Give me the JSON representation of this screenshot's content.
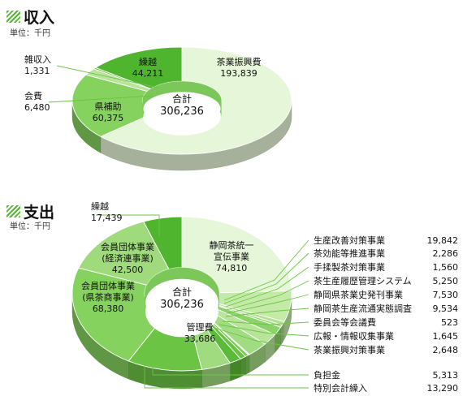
{
  "income": {
    "title": "収入",
    "unit": "単位：千円"
  },
  "expense": {
    "title": "支出",
    "unit": "単位：千円"
  },
  "chart_data": [
    {
      "type": "pie",
      "title": "収入",
      "unit": "千円",
      "center_label": "合計",
      "center_value": "306,236",
      "slices": [
        {
          "label": "茶業振興費",
          "value": 193839,
          "display": "193,839",
          "color": "#e6f6d8"
        },
        {
          "label": "県補助",
          "value": 60375,
          "display": "60,375",
          "color": "#86d25e"
        },
        {
          "label": "会費",
          "value": 6480,
          "display": "6,480",
          "color": "#b9e59b"
        },
        {
          "label": "雑収入",
          "value": 1331,
          "display": "1,331",
          "color": "#6cc444"
        },
        {
          "label": "繰越",
          "value": 44211,
          "display": "44,211",
          "color": "#4fb52e"
        }
      ]
    },
    {
      "type": "pie",
      "title": "支出",
      "unit": "千円",
      "center_label": "合計",
      "center_value": "306,236",
      "slices": [
        {
          "label": "静岡茶統一\n宣伝事業",
          "value": 74810,
          "display": "74,810",
          "color": "#e6f6d8"
        },
        {
          "label": "生産改善対策事業",
          "value": 19842,
          "display": "19,842",
          "color": "#c4eaa8"
        },
        {
          "label": "茶効能等推進事業",
          "value": 2286,
          "display": "2,286",
          "color": "#b1e292"
        },
        {
          "label": "手揉製茶対策事業",
          "value": 1560,
          "display": "1,560",
          "color": "#9edb7c"
        },
        {
          "label": "茶生産履歴管理システム",
          "value": 5250,
          "display": "5,250",
          "color": "#8bd366"
        },
        {
          "label": "静岡県茶業史発刊事業",
          "value": 7530,
          "display": "7,530",
          "color": "#b8e49a"
        },
        {
          "label": "静岡茶生産流通実態調査",
          "value": 9534,
          "display": "9,534",
          "color": "#a2dc82"
        },
        {
          "label": "委員会等会議費",
          "value": 523,
          "display": "523",
          "color": "#8ad165"
        },
        {
          "label": "広報・情報収集事業",
          "value": 1645,
          "display": "1,645",
          "color": "#79c953"
        },
        {
          "label": "茶業振興対策事業",
          "value": 2648,
          "display": "2,648",
          "color": "#68c142"
        },
        {
          "label": "負担金",
          "value": 5313,
          "display": "5,313",
          "color": "#5bba37"
        },
        {
          "label": "特別会計繰入",
          "value": 13290,
          "display": "13,290",
          "color": "#a0db7f"
        },
        {
          "label": "管理費",
          "value": 33686,
          "display": "33,686",
          "color": "#6cc444"
        },
        {
          "label": "会員団体事業\n(県茶商事業)",
          "value": 68380,
          "display": "68,380",
          "color": "#86d25e"
        },
        {
          "label": "会員団体事業\n(経済連事業)",
          "value": 42500,
          "display": "42,500",
          "color": "#9fdb7c"
        },
        {
          "label": "繰越",
          "value": 17439,
          "display": "17,439",
          "color": "#4fb52e"
        }
      ]
    }
  ]
}
